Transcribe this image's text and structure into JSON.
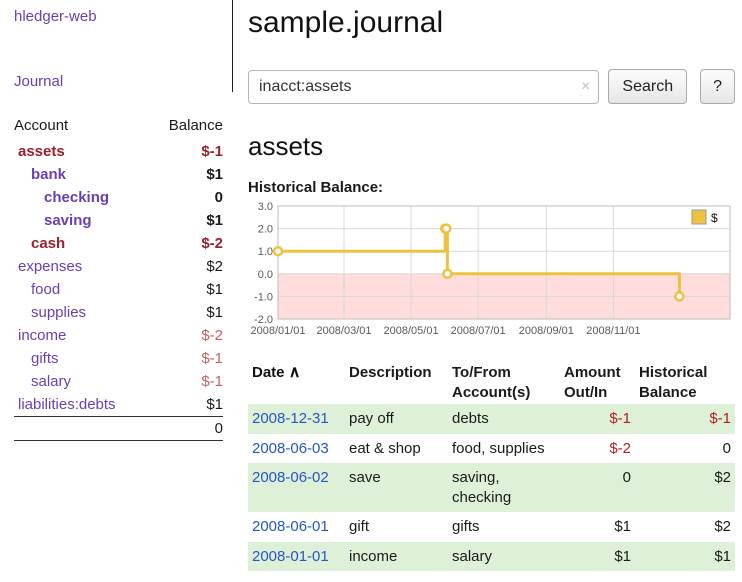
{
  "colors": {
    "purple": "#6a3fb5",
    "negative_strong": "#9c1f2e",
    "negative_soft": "#c46262",
    "negative_amount": "#b22222",
    "link_blue": "#2457c5",
    "row_green": "#dff0d8",
    "chart_line": "#edc240",
    "chart_negative_fill": "#ffdddd"
  },
  "sidebar": {
    "app_title": "hledger-web",
    "nav": {
      "journal": "Journal"
    },
    "accounts": {
      "col_account": "Account",
      "col_balance": "Balance",
      "rows": [
        {
          "name": "assets",
          "balance": "$-1"
        },
        {
          "name": "bank",
          "balance": "$1"
        },
        {
          "name": "checking",
          "balance": "0"
        },
        {
          "name": "saving",
          "balance": "$1"
        },
        {
          "name": "cash",
          "balance": "$-2"
        },
        {
          "name": "expenses",
          "balance": "$2"
        },
        {
          "name": "food",
          "balance": "$1"
        },
        {
          "name": "supplies",
          "balance": "$1"
        },
        {
          "name": "income",
          "balance": "$-2"
        },
        {
          "name": "gifts",
          "balance": "$-1"
        },
        {
          "name": "salary",
          "balance": "$-1"
        },
        {
          "name": "liabilities:debts",
          "balance": "$1"
        }
      ],
      "total": "0"
    }
  },
  "main": {
    "title": "sample.journal",
    "search": {
      "value": "inacct:assets",
      "clear_icon": "×",
      "button": "Search",
      "help_button": "?"
    },
    "account_heading": "assets",
    "chart_label": "Historical Balance:"
  },
  "chart_data": {
    "type": "line",
    "step": true,
    "title": "Historical Balance:",
    "series": [
      {
        "name": "$",
        "color": "#edc240",
        "points": [
          [
            "2008-01-01",
            1
          ],
          [
            "2008-06-01",
            2
          ],
          [
            "2008-06-02",
            2
          ],
          [
            "2008-06-03",
            0
          ],
          [
            "2008-12-31",
            -1
          ]
        ]
      }
    ],
    "x_ticks": [
      "2008/01/01",
      "2008/03/01",
      "2008/05/01",
      "2008/07/01",
      "2008/09/01",
      "2008/11/01"
    ],
    "y_ticks": [
      3.0,
      2.0,
      1.0,
      0.0,
      -1.0,
      -2.0
    ],
    "ylim": [
      -2.0,
      3.0
    ],
    "xlim": [
      "2008-01-01",
      "2009-02-15"
    ],
    "grid": true,
    "legend_position": "top-right",
    "negative_region_fill": "#ffdddd"
  },
  "register": {
    "headers": {
      "date": "Date",
      "sort_indicator": "∧",
      "description": "Description",
      "account_l1": "To/From",
      "account_l2": "Account(s)",
      "amount_l1": "Amount",
      "amount_l2": "Out/In",
      "balance_l1": "Historical",
      "balance_l2": "Balance"
    },
    "rows": [
      {
        "date": "2008-12-31",
        "description": "pay off",
        "accounts": "debts",
        "amount": "$-1",
        "balance": "$-1"
      },
      {
        "date": "2008-06-03",
        "description": "eat & shop",
        "accounts": "food, supplies",
        "amount": "$-2",
        "balance": "0"
      },
      {
        "date": "2008-06-02",
        "description": "save",
        "accounts": "saving, checking",
        "amount": "0",
        "balance": "$2"
      },
      {
        "date": "2008-06-01",
        "description": "gift",
        "accounts": "gifts",
        "amount": "$1",
        "balance": "$2"
      },
      {
        "date": "2008-01-01",
        "description": "income",
        "accounts": "salary",
        "amount": "$1",
        "balance": "$1"
      }
    ]
  }
}
